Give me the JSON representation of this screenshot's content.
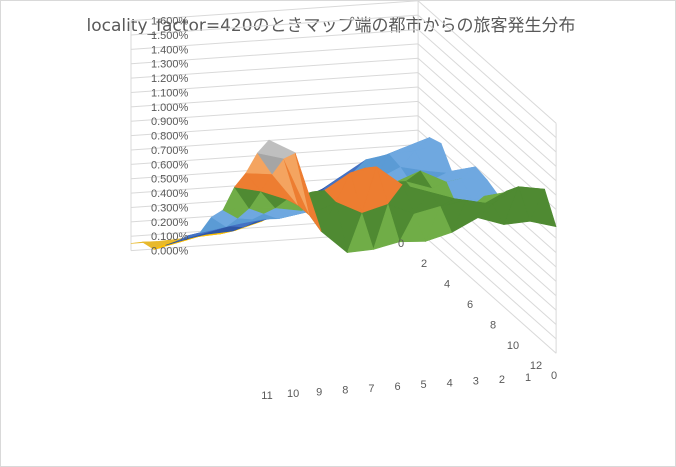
{
  "chart_data": {
    "type": "surface",
    "title": "locality_factor=420のときマップ端の都市からの旅客発生分布",
    "zlim": [
      0.0,
      0.016
    ],
    "z_ticks": [
      "0.000%",
      "0.100%",
      "0.200%",
      "0.300%",
      "0.400%",
      "0.500%",
      "0.600%",
      "0.700%",
      "0.800%",
      "0.900%",
      "1.000%",
      "1.100%",
      "1.200%",
      "1.300%",
      "1.400%",
      "1.500%",
      "1.600%"
    ],
    "x_ticks": [
      "0",
      "1",
      "2",
      "3",
      "4",
      "5",
      "6",
      "7",
      "8",
      "9",
      "10",
      "11"
    ],
    "y_ticks": [
      "0",
      "2",
      "4",
      "6",
      "8",
      "10",
      "12"
    ],
    "colors": [
      "#e8b92b",
      "#ffc000",
      "#2f57a6",
      "#4472c4",
      "#5b9bd5",
      "#6fa8e0",
      "#70ad47",
      "#4f8a32",
      "#ed7d31",
      "#f4a460",
      "#a5a5a5",
      "#bfbfbf"
    ],
    "grid": true,
    "values": [
      [
        0.0046,
        0.0072,
        0.0075,
        0.0061,
        0.0062,
        0.008,
        0.0078,
        0.0074,
        0.0084,
        0.0082,
        0.0094,
        0.0107,
        0.0088
      ],
      [
        0.0055,
        0.0066,
        0.0071,
        0.0064,
        0.0059,
        0.0078,
        0.008,
        0.0072,
        0.0082,
        0.0079,
        0.01,
        0.011,
        0.0093
      ],
      [
        0.0052,
        0.006,
        0.007,
        0.0068,
        0.0063,
        0.007,
        0.0074,
        0.0086,
        0.0075,
        0.0082,
        0.0091,
        0.0099,
        0.0092
      ],
      [
        0.0041,
        0.005,
        0.0056,
        0.006,
        0.0071,
        0.0076,
        0.0083,
        0.0095,
        0.009,
        0.0087,
        0.0097,
        0.0103,
        0.0098
      ],
      [
        0.003,
        0.0042,
        0.0049,
        0.0055,
        0.0061,
        0.0069,
        0.0079,
        0.0088,
        0.0096,
        0.0093,
        0.0103,
        0.01,
        0.0089
      ],
      [
        0.0022,
        0.0035,
        0.004,
        0.0052,
        0.0059,
        0.0068,
        0.0076,
        0.0085,
        0.0094,
        0.0104,
        0.0109,
        0.0096,
        0.0084
      ],
      [
        0.0014,
        0.0026,
        0.0037,
        0.0044,
        0.0056,
        0.0063,
        0.0067,
        0.0079,
        0.0092,
        0.0115,
        0.0123,
        0.0104,
        0.0085
      ],
      [
        0.0009,
        0.002,
        0.003,
        0.0039,
        0.0047,
        0.0058,
        0.0064,
        0.0074,
        0.0083,
        0.0099,
        0.012,
        0.0099,
        0.0081
      ],
      [
        0.0007,
        0.0015,
        0.0024,
        0.0034,
        0.0045,
        0.0054,
        0.0061,
        0.007,
        0.0081,
        0.0101,
        0.0109,
        0.0108,
        0.008
      ],
      [
        0.0006,
        0.0014,
        0.0023,
        0.0033,
        0.0043,
        0.0052,
        0.0062,
        0.0073,
        0.0084,
        0.0097,
        0.01,
        0.01,
        0.0096
      ],
      [
        0.0005,
        0.0011,
        0.0019,
        0.0029,
        0.0039,
        0.0049,
        0.0058,
        0.0071,
        0.0085,
        0.0104,
        0.0123,
        0.0141,
        0.0152
      ],
      [
        0.0005,
        0.0013,
        0.0015,
        0.0025,
        0.0035,
        0.0046,
        0.0055,
        0.0073,
        0.0085,
        0.0108,
        0.0125,
        0.0146,
        0.0162
      ]
    ]
  }
}
